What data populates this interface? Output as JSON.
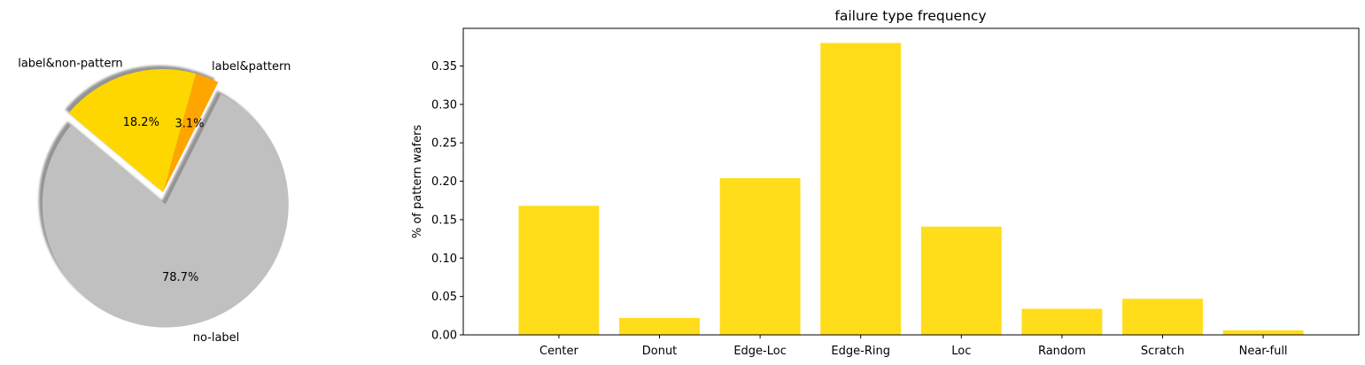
{
  "chart_data": [
    {
      "type": "pie",
      "labels": [
        "no-label",
        "label&pattern",
        "label&non-pattern"
      ],
      "values": [
        78.7,
        3.1,
        18.2
      ],
      "value_labels": [
        "78.7%",
        "3.1%",
        "18.2%"
      ],
      "colors": [
        "#c0c0c0",
        "#ffa500",
        "#ffd700"
      ],
      "explode": [
        0.1,
        0,
        0
      ],
      "shadow": true,
      "title": ""
    },
    {
      "type": "bar",
      "title": "failure type frequency",
      "xlabel": "",
      "ylabel": "% of pattern wafers",
      "categories": [
        "Center",
        "Donut",
        "Edge-Loc",
        "Edge-Ring",
        "Loc",
        "Random",
        "Scratch",
        "Near-full"
      ],
      "values": [
        0.168,
        0.022,
        0.204,
        0.38,
        0.141,
        0.034,
        0.047,
        0.006
      ],
      "ylim": [
        0,
        0.399
      ],
      "yticks": [
        0.0,
        0.05,
        0.1,
        0.15,
        0.2,
        0.25,
        0.3,
        0.35
      ],
      "ytick_labels": [
        "0.00",
        "0.05",
        "0.10",
        "0.15",
        "0.20",
        "0.25",
        "0.30",
        "0.35"
      ],
      "color": "#ffdd1a",
      "grid": false
    }
  ]
}
